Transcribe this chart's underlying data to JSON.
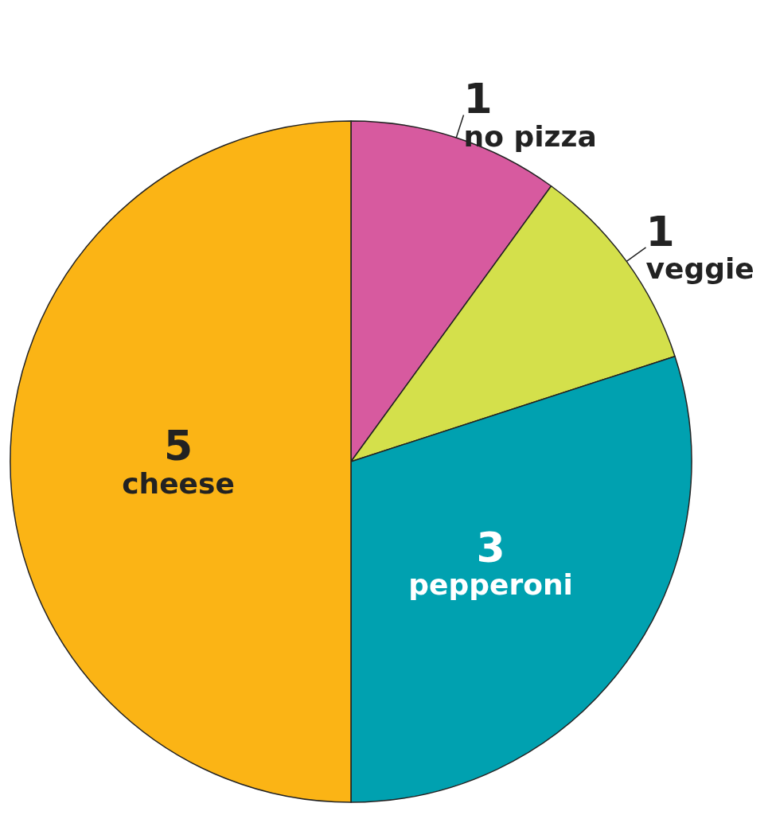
{
  "chart_data": {
    "type": "pie",
    "categories": [
      "no pizza",
      "veggie",
      "pepperoni",
      "cheese"
    ],
    "values": [
      1,
      1,
      3,
      5
    ],
    "colors": [
      "#d75a9f",
      "#d4e04b",
      "#00a1b0",
      "#fbb415"
    ],
    "data_labels": true
  }
}
